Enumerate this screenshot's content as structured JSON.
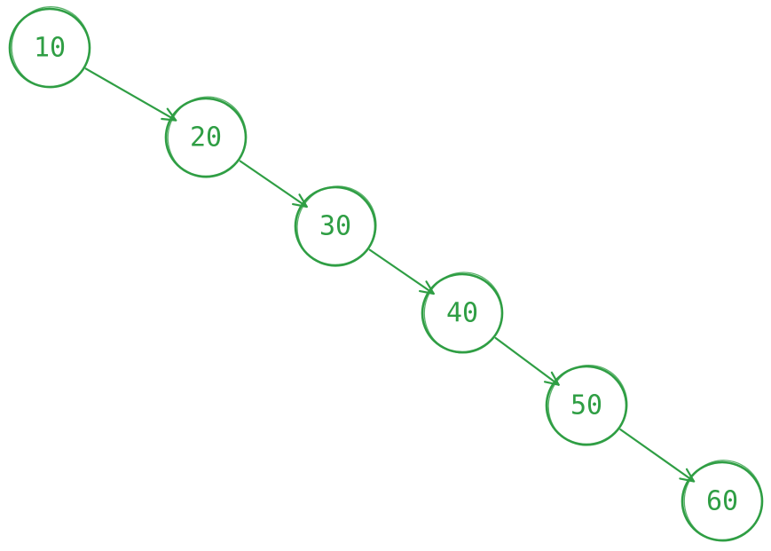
{
  "diagram": {
    "stroke_color": "#2f9e44",
    "text_color": "#2f9e44",
    "nodes": [
      {
        "id": "n10",
        "label": "10"
      },
      {
        "id": "n20",
        "label": "20"
      },
      {
        "id": "n30",
        "label": "30"
      },
      {
        "id": "n40",
        "label": "40"
      },
      {
        "id": "n50",
        "label": "50"
      },
      {
        "id": "n60",
        "label": "60"
      }
    ],
    "edges": [
      {
        "from": "n10",
        "to": "n20"
      },
      {
        "from": "n20",
        "to": "n30"
      },
      {
        "from": "n30",
        "to": "n40"
      },
      {
        "from": "n40",
        "to": "n50"
      },
      {
        "from": "n50",
        "to": "n60"
      }
    ]
  }
}
